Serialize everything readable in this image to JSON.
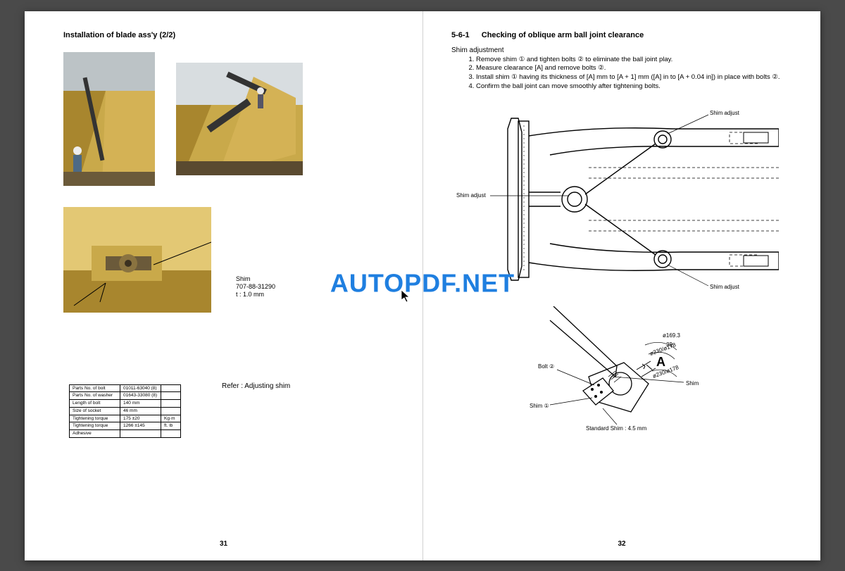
{
  "watermark": "AUTOPDF.NET",
  "left": {
    "title": "Installation of blade ass'y (2/2)",
    "shim_label_l1": "Shim",
    "shim_label_l2": "707-88-31290",
    "shim_label_l3": "t : 1.0 mm",
    "refer": "Refer : Adjusting shim",
    "table": {
      "rows": [
        [
          "Parts No. of bolt",
          "01011-63040 (8)",
          ""
        ],
        [
          "Parts No. of washer",
          "01643-33080 (8)",
          ""
        ],
        [
          "Length of bolt",
          "140 mm",
          ""
        ],
        [
          "Size of socket",
          "46 mm",
          ""
        ],
        [
          "Tightening torque",
          "175 ±20",
          "Kg·m"
        ],
        [
          "Tightening torque",
          "1266 ±145",
          "ft. lb"
        ],
        [
          "Adhesive",
          "",
          ""
        ]
      ]
    },
    "page_no": "31",
    "photo_colors": {
      "machine": "#c9a94a",
      "machine_dark": "#a8862e",
      "machine_light": "#e3c874",
      "sky": "#a8b8c4",
      "bg_blue": "#4d6a85"
    }
  },
  "right": {
    "section_num": "5-6-1",
    "section_title": "Checking of oblique arm ball joint clearance",
    "subhead": "Shim adjustment",
    "steps": [
      "Remove shim ① and tighten bolts ② to eliminate the ball joint play.",
      "Measure clearance [A] and remove bolts ②.",
      "Install shim ① having its thickness of [A] mm to [A + 1] mm ([A] in to [A + 0.04 in]) in place with bolts ②.",
      "Confirm the ball joint can move smoothly after tightening bolts."
    ],
    "diagram1_labels": {
      "shim_adjust_top": "Shim adjust",
      "shim_adjust_mid": "Shim adjust",
      "shim_adjust_bot": "Shim adjust"
    },
    "diagram2_labels": {
      "bolt": "Bolt ②",
      "shim1": "Shim ①",
      "shim": "Shim",
      "std_shim": "Standard Shim : 4.5 mm",
      "dimA": "A",
      "dim1": "ø169.3",
      "dim2": "39",
      "dim3": "ø230/ø178",
      "dim4": "ø230/ø178"
    },
    "page_no": "32"
  }
}
